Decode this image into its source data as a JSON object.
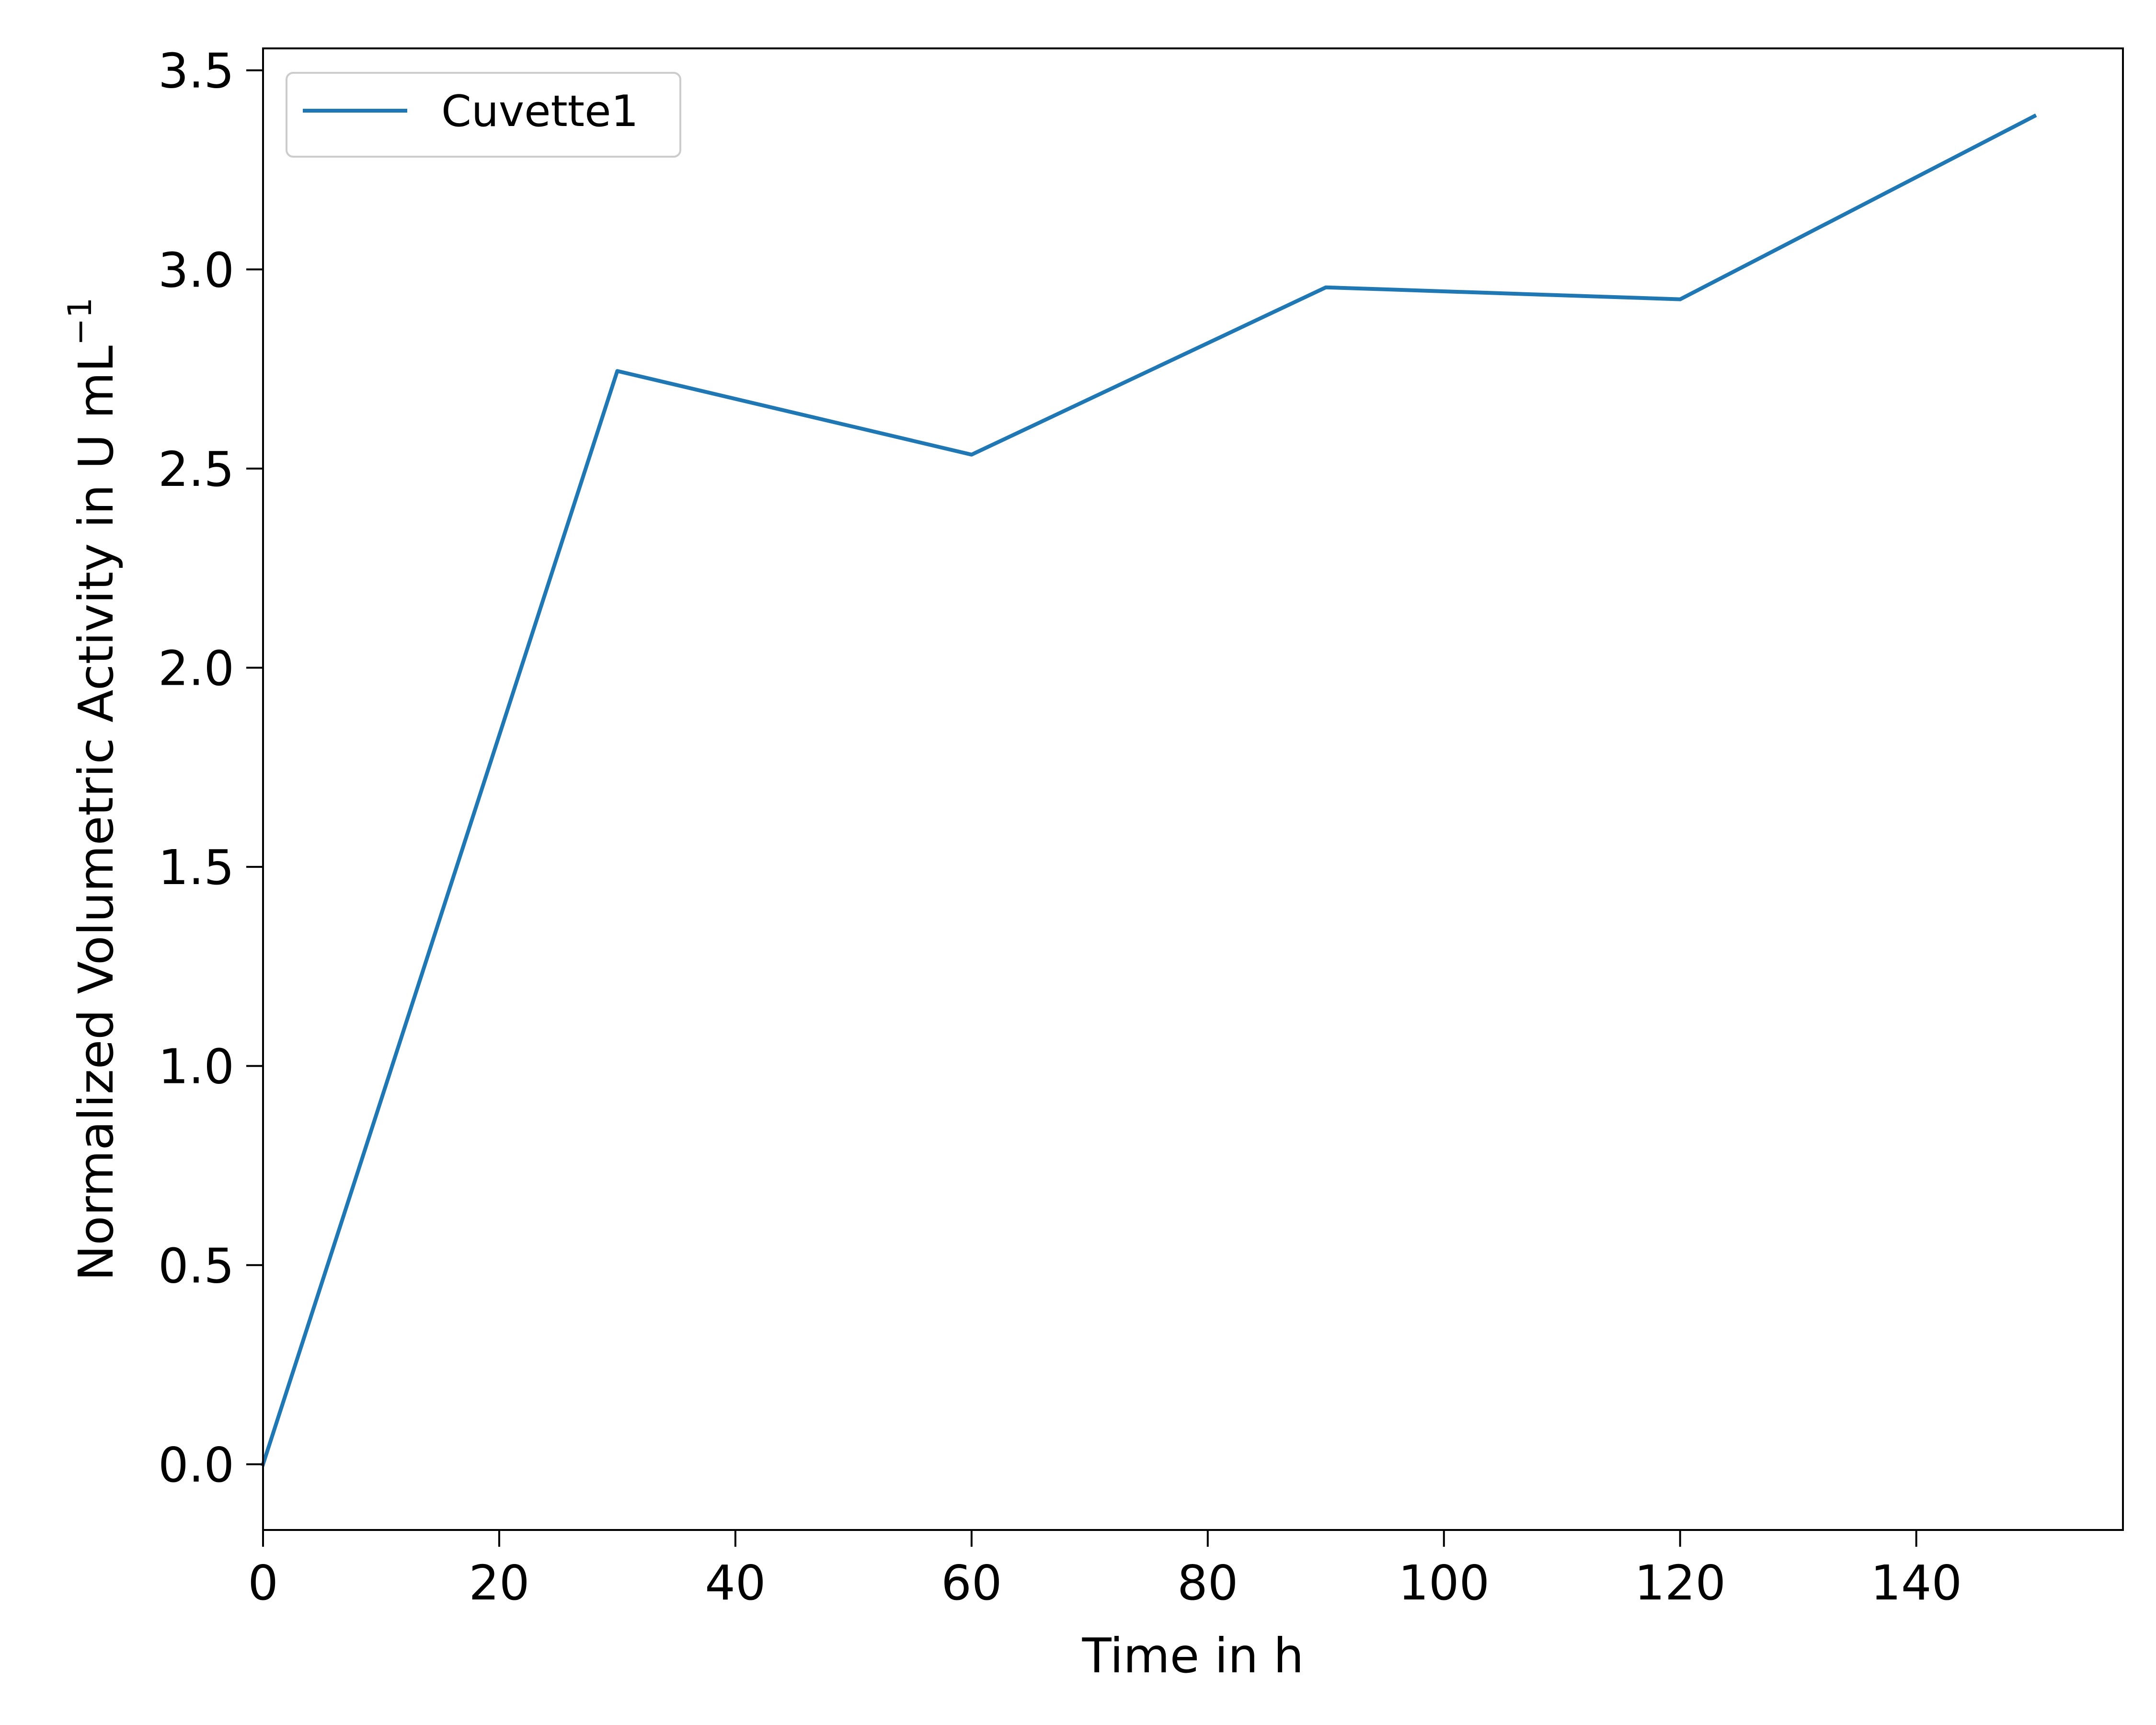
{
  "chart_data": {
    "type": "line",
    "title": "",
    "xlabel": "Time in h",
    "ylabel": "Normalized Volumetric Activity in U mL",
    "ylabel_superscript": "−1",
    "xlim": [
      0,
      157.5
    ],
    "ylim": [
      -0.165,
      3.555
    ],
    "xticks": [
      0,
      20,
      40,
      60,
      80,
      100,
      120,
      140
    ],
    "xtick_labels": [
      "0",
      "20",
      "40",
      "60",
      "80",
      "100",
      "120",
      "140"
    ],
    "yticks": [
      0.0,
      0.5,
      1.0,
      1.5,
      2.0,
      2.5,
      3.0,
      3.5
    ],
    "ytick_labels": [
      "0.0",
      "0.5",
      "1.0",
      "1.5",
      "2.0",
      "2.5",
      "3.0",
      "3.5"
    ],
    "grid": false,
    "legend_position": "top-left",
    "series": [
      {
        "name": "Cuvette1",
        "color": "#1f77b4",
        "x": [
          0,
          30,
          60,
          90,
          120,
          150
        ],
        "y": [
          0.0,
          2.745,
          2.535,
          2.955,
          2.925,
          3.385
        ]
      }
    ]
  }
}
